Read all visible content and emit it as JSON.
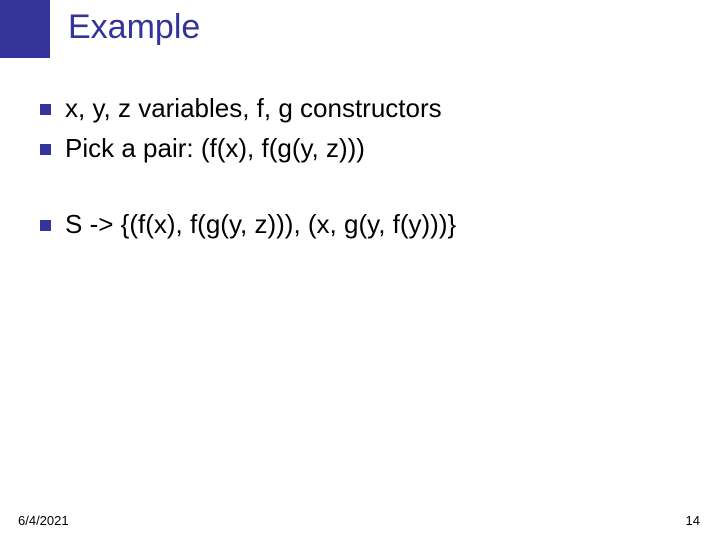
{
  "slide": {
    "title": "Example",
    "bullets": [
      {
        "text": "x, y, z  variables, f, g constructors"
      },
      {
        "text": "Pick a pair: (f(x), f(g(y, z)))"
      },
      {
        "text": "S -> {(f(x), f(g(y, z))), (x, g(y, f(y)))}"
      }
    ],
    "footer": {
      "date": "6/4/2021",
      "page": "14"
    }
  },
  "style": {
    "title_color": "#333399",
    "title_fontsize": 34,
    "bullet_color": "#333399",
    "bullet_size": 11,
    "body_fontsize": 26,
    "body_color": "#000000",
    "footer_fontsize": 13,
    "background": "#ffffff",
    "accent_bar_width": 50,
    "accent_bar_height": 58
  }
}
